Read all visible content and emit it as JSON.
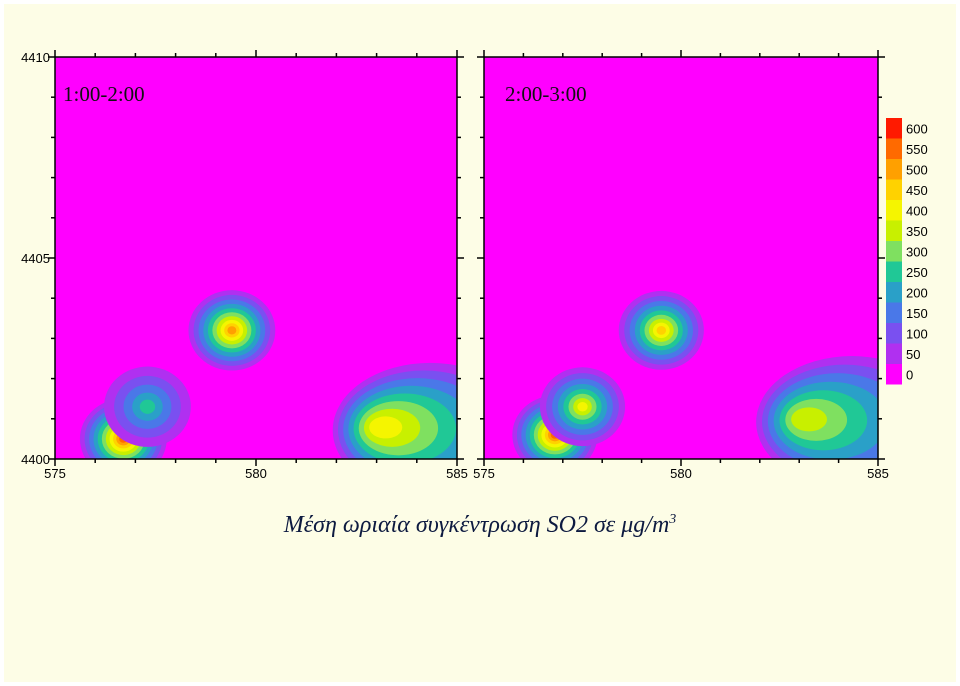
{
  "caption": {
    "text": "Μέση ωριαία συγκέντρωση SO2 σε μg/m",
    "superscript": "3"
  },
  "chart_data": [
    {
      "type": "heatmap",
      "title": "1:00-2:00",
      "xlim": [
        575,
        585
      ],
      "ylim": [
        4400,
        4410
      ],
      "x_ticks": [
        "575",
        "580",
        "585"
      ],
      "y_ticks": [
        "4410",
        "4405",
        "4400"
      ],
      "background_value": 30,
      "hotspots": [
        {
          "x": 576.7,
          "y": 4400.5,
          "peak": 560
        },
        {
          "x": 577.3,
          "y": 4401.3,
          "peak": 230
        },
        {
          "x": 579.4,
          "y": 4403.2,
          "peak": 500
        },
        {
          "x": 583.0,
          "y": 4400.8,
          "peak": 380,
          "plume": true
        }
      ]
    },
    {
      "type": "heatmap",
      "title": "2:00-3:00",
      "xlim": [
        575,
        585
      ],
      "ylim": [
        4400,
        4410
      ],
      "x_ticks": [
        "575",
        "580",
        "585"
      ],
      "y_ticks": [],
      "background_value": 30,
      "hotspots": [
        {
          "x": 576.8,
          "y": 4400.6,
          "peak": 540
        },
        {
          "x": 577.5,
          "y": 4401.3,
          "peak": 400
        },
        {
          "x": 579.5,
          "y": 4403.2,
          "peak": 470
        },
        {
          "x": 583.0,
          "y": 4401.0,
          "peak": 340,
          "plume": true
        }
      ]
    }
  ],
  "legend": {
    "labels": [
      "600",
      "550",
      "500",
      "450",
      "400",
      "350",
      "300",
      "250",
      "200",
      "150",
      "100",
      "50",
      "0"
    ],
    "colors": [
      "#ff1a00",
      "#ff6a00",
      "#ffa000",
      "#ffd200",
      "#f5f500",
      "#c8f000",
      "#7fe060",
      "#20c896",
      "#2aa0c8",
      "#4a78e8",
      "#7a50f0",
      "#b030f0",
      "#ff00ff"
    ]
  }
}
